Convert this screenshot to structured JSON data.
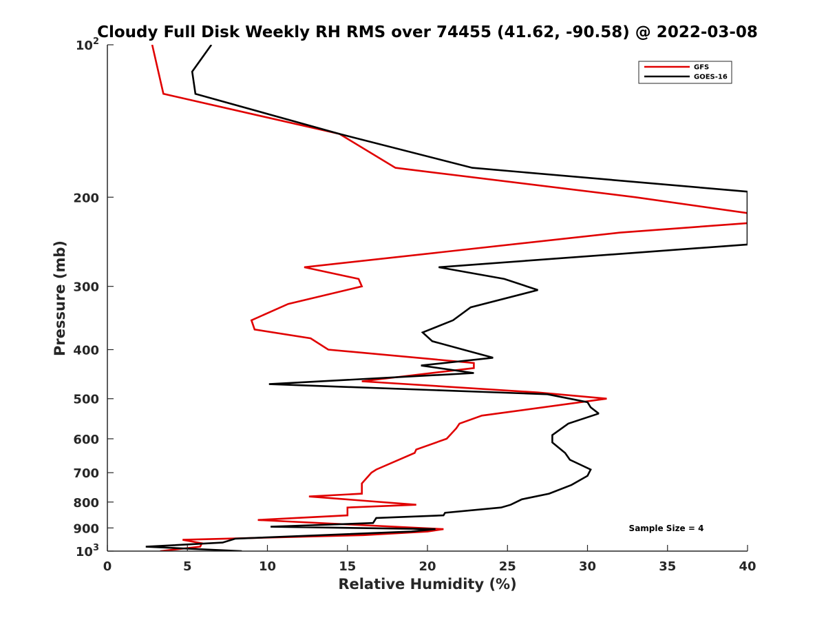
{
  "chart_data": {
    "type": "line",
    "title": "Cloudy Full Disk Weekly RH RMS over 74455 (41.62, -90.58) @ 2022-03-08",
    "xlabel": "Relative Humidity (%)",
    "ylabel": "Pressure (mb)",
    "xlim": [
      0,
      40
    ],
    "ylim": [
      100,
      1000
    ],
    "y_scale": "log",
    "y_reversed": true,
    "x_ticks": [
      "0",
      "5",
      "10",
      "15",
      "20",
      "25",
      "30",
      "35",
      "40"
    ],
    "y_ticks": [
      {
        "value": 100,
        "base": "10",
        "exp": "2"
      },
      {
        "value": 200,
        "label": "200"
      },
      {
        "value": 300,
        "label": "300"
      },
      {
        "value": 400,
        "label": "400"
      },
      {
        "value": 500,
        "label": "500"
      },
      {
        "value": 600,
        "label": "600"
      },
      {
        "value": 700,
        "label": "700"
      },
      {
        "value": 800,
        "label": "800"
      },
      {
        "value": 900,
        "label": "900"
      },
      {
        "value": 1000,
        "base": "10",
        "exp": "3"
      }
    ],
    "legend_position": "top-right",
    "annotation": "Sample Size = 4",
    "series": [
      {
        "name": "GFS",
        "color": "#e00000",
        "points": [
          [
            2.8,
            100
          ],
          [
            3.5,
            125
          ],
          [
            14.5,
            150
          ],
          [
            18.0,
            175
          ],
          [
            33.0,
            200
          ],
          [
            40.0,
            215
          ],
          [
            40.0,
            225
          ],
          [
            32.0,
            235
          ],
          [
            12.3,
            275
          ],
          [
            15.7,
            290
          ],
          [
            15.9,
            300
          ],
          [
            11.3,
            325
          ],
          [
            9.0,
            350
          ],
          [
            9.2,
            365
          ],
          [
            12.7,
            380
          ],
          [
            13.8,
            400
          ],
          [
            22.9,
            425
          ],
          [
            22.9,
            435
          ],
          [
            15.9,
            462
          ],
          [
            26.9,
            486
          ],
          [
            31.2,
            500
          ],
          [
            23.4,
            540
          ],
          [
            22.0,
            560
          ],
          [
            21.8,
            572
          ],
          [
            21.2,
            600
          ],
          [
            19.3,
            630
          ],
          [
            19.2,
            640
          ],
          [
            16.8,
            690
          ],
          [
            16.5,
            700
          ],
          [
            15.9,
            735
          ],
          [
            15.9,
            770
          ],
          [
            12.6,
            780
          ],
          [
            19.3,
            810
          ],
          [
            15.0,
            820
          ],
          [
            15.0,
            850
          ],
          [
            9.4,
            868
          ],
          [
            21.0,
            905
          ],
          [
            20.0,
            915
          ],
          [
            16.0,
            930
          ],
          [
            4.7,
            950
          ],
          [
            5.9,
            965
          ],
          [
            5.8,
            980
          ],
          [
            3.3,
            1000
          ]
        ]
      },
      {
        "name": "GOES-16",
        "color": "#000000",
        "points": [
          [
            6.5,
            100
          ],
          [
            5.3,
            113
          ],
          [
            5.5,
            125
          ],
          [
            14.5,
            150
          ],
          [
            22.8,
            175
          ],
          [
            40.0,
            195
          ],
          [
            40.0,
            248
          ],
          [
            20.7,
            275
          ],
          [
            24.8,
            290
          ],
          [
            26.9,
            305
          ],
          [
            22.7,
            330
          ],
          [
            21.6,
            350
          ],
          [
            19.7,
            370
          ],
          [
            20.3,
            385
          ],
          [
            24.1,
            415
          ],
          [
            19.6,
            430
          ],
          [
            22.9,
            445
          ],
          [
            10.1,
            468
          ],
          [
            27.5,
            490
          ],
          [
            30.0,
            508
          ],
          [
            30.2,
            520
          ],
          [
            30.7,
            535
          ],
          [
            28.8,
            560
          ],
          [
            27.8,
            590
          ],
          [
            27.8,
            610
          ],
          [
            28.6,
            640
          ],
          [
            28.9,
            660
          ],
          [
            30.2,
            690
          ],
          [
            30.0,
            710
          ],
          [
            29.0,
            740
          ],
          [
            27.6,
            770
          ],
          [
            25.9,
            790
          ],
          [
            25.2,
            810
          ],
          [
            24.6,
            820
          ],
          [
            21.1,
            840
          ],
          [
            21.0,
            850
          ],
          [
            16.8,
            860
          ],
          [
            16.6,
            880
          ],
          [
            10.2,
            895
          ],
          [
            20.5,
            905
          ],
          [
            19.0,
            915
          ],
          [
            8.0,
            945
          ],
          [
            7.2,
            962
          ],
          [
            2.4,
            980
          ],
          [
            8.4,
            1000
          ]
        ]
      }
    ]
  }
}
